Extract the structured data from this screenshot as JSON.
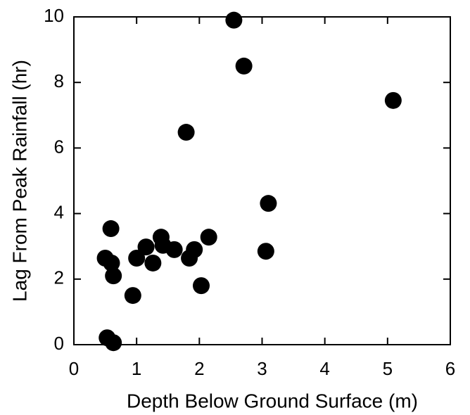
{
  "chart_data": {
    "type": "scatter",
    "xlabel": "Depth Below Ground Surface (m)",
    "ylabel": "Lag From Peak Rainfall (hr)",
    "color": "#000000",
    "x": [
      2.55,
      2.71,
      5.09,
      1.79,
      3.1,
      0.59,
      1.39,
      2.15,
      1.15,
      1.42,
      1.6,
      1.92,
      0.5,
      0.6,
      1.0,
      1.26,
      1.84,
      3.06,
      0.63,
      2.03,
      0.94,
      0.53,
      0.63
    ],
    "values": [
      9.9,
      8.5,
      7.45,
      6.48,
      4.31,
      3.54,
      3.28,
      3.28,
      2.98,
      3.03,
      2.9,
      2.9,
      2.64,
      2.49,
      2.64,
      2.49,
      2.64,
      2.85,
      2.1,
      1.8,
      1.5,
      0.21,
      0.06
    ],
    "xlim": [
      0,
      6
    ],
    "xticks": [
      0,
      1,
      2,
      3,
      4,
      5,
      6
    ],
    "ylim": [
      0,
      10
    ],
    "yticks": [
      0,
      2,
      4,
      6,
      8,
      10
    ]
  }
}
